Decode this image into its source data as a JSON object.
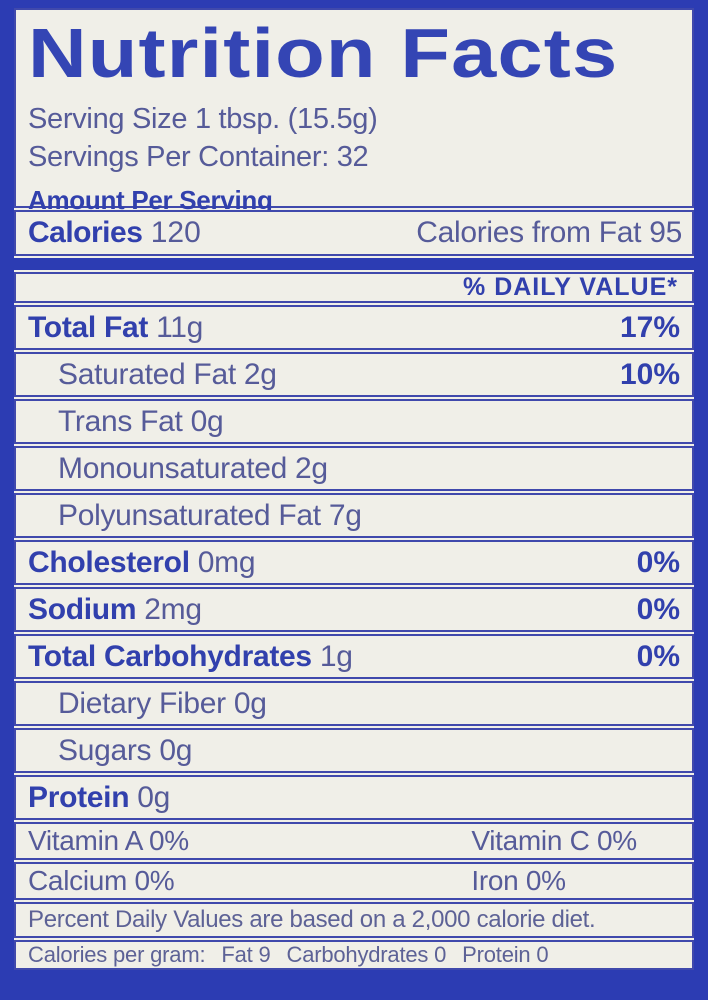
{
  "colors": {
    "frame_blue": "#2c3cb3",
    "border_blue": "#4049ac",
    "label_background": "#f0efe8",
    "bold_text_blue": "#3140ad",
    "regular_text_blue": "#565b99"
  },
  "label": {
    "title": "Nutrition Facts",
    "serving_size": "Serving Size 1 tbsp. (15.5g)",
    "servings_per_container": "Servings Per Container: 32",
    "amount_per_serving": "Amount Per Serving",
    "calories": {
      "label": "Calories",
      "value": "120",
      "from_fat": "Calories from Fat 95"
    },
    "daily_value_header": "% DAILY VALUE*",
    "rows": [
      {
        "name": "Total Fat",
        "amount": "11g",
        "dv": "17%"
      },
      {
        "name": "Saturated Fat",
        "amount": "2g",
        "dv": "10%"
      },
      {
        "name": "Trans Fat",
        "amount": "0g",
        "dv": ""
      },
      {
        "name": "Monounsaturated",
        "amount": "2g",
        "dv": ""
      },
      {
        "name": "Polyunsaturated Fat",
        "amount": "7g",
        "dv": ""
      },
      {
        "name": "Cholesterol",
        "amount": "0mg",
        "dv": "0%"
      },
      {
        "name": "Sodium",
        "amount": "2mg",
        "dv": "0%"
      },
      {
        "name": "Total Carbohydrates",
        "amount": "1g",
        "dv": "0%"
      },
      {
        "name": "Dietary Fiber",
        "amount": "0g",
        "dv": ""
      },
      {
        "name": "Sugars",
        "amount": "0g",
        "dv": ""
      },
      {
        "name": "Protein",
        "amount": "0g",
        "dv": ""
      }
    ],
    "micros": [
      {
        "left": "Vitamin A 0%",
        "right": "Vitamin C 0%"
      },
      {
        "left": "Calcium 0%",
        "right": "Iron 0%"
      }
    ],
    "footnote": "Percent Daily Values are based on a 2,000 calorie diet.",
    "calories_per_gram": {
      "prefix": "Calories per gram:",
      "fat": "Fat 9",
      "carbs": "Carbohydrates 0",
      "protein": "Protein 0"
    }
  }
}
